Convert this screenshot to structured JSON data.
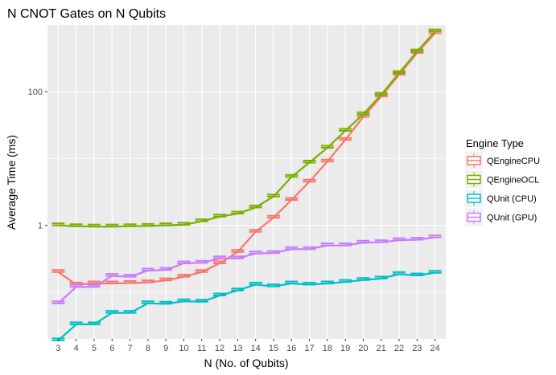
{
  "chart_data": {
    "type": "line",
    "title": "N CNOT Gates on N Qubits",
    "xlabel": "N (No. of Qubits)",
    "ylabel": "Average Time (ms)",
    "yscale": "log10",
    "ylim": [
      0.02,
      1000
    ],
    "yticks": [
      1,
      100
    ],
    "ytick_labels": [
      "1",
      "100"
    ],
    "x": [
      3,
      4,
      5,
      6,
      7,
      8,
      9,
      10,
      11,
      12,
      13,
      14,
      15,
      16,
      17,
      18,
      19,
      20,
      21,
      22,
      23,
      24
    ],
    "x_tick_labels": [
      "3",
      "4",
      "5",
      "6",
      "7",
      "8",
      "9",
      "10",
      "11",
      "12",
      "13",
      "14",
      "15",
      "16",
      "17",
      "18",
      "19",
      "20",
      "21",
      "22",
      "23",
      "24"
    ],
    "legend_title": "Engine Type",
    "legend_position": "right",
    "grid": true,
    "series": [
      {
        "name": "QEngineCPU",
        "color": "#F8766D",
        "values": [
          0.2,
          0.13,
          0.135,
          0.135,
          0.137,
          0.14,
          0.15,
          0.17,
          0.2,
          0.27,
          0.4,
          0.8,
          1.3,
          2.4,
          4.5,
          9,
          19,
          42,
          85,
          180,
          380,
          750
        ]
      },
      {
        "name": "QEngineOCL",
        "color": "#7CAE00",
        "values": [
          1.0,
          0.97,
          0.96,
          0.96,
          0.97,
          0.98,
          1.0,
          1.02,
          1.15,
          1.35,
          1.5,
          1.85,
          2.7,
          5.3,
          8.7,
          14.5,
          26,
          46,
          90,
          190,
          400,
          800
        ]
      },
      {
        "name": "QUnit (CPU)",
        "color": "#00BFC4",
        "values": [
          0.019,
          0.033,
          0.033,
          0.049,
          0.049,
          0.068,
          0.067,
          0.073,
          0.072,
          0.089,
          0.106,
          0.13,
          0.122,
          0.135,
          0.13,
          0.135,
          0.142,
          0.152,
          0.16,
          0.186,
          0.178,
          0.195
        ]
      },
      {
        "name": "QUnit (GPU)",
        "color": "#C77CFF",
        "values": [
          0.068,
          0.12,
          0.12,
          0.175,
          0.17,
          0.21,
          0.215,
          0.27,
          0.275,
          0.32,
          0.32,
          0.38,
          0.385,
          0.44,
          0.44,
          0.5,
          0.5,
          0.55,
          0.56,
          0.6,
          0.61,
          0.66
        ]
      }
    ]
  }
}
